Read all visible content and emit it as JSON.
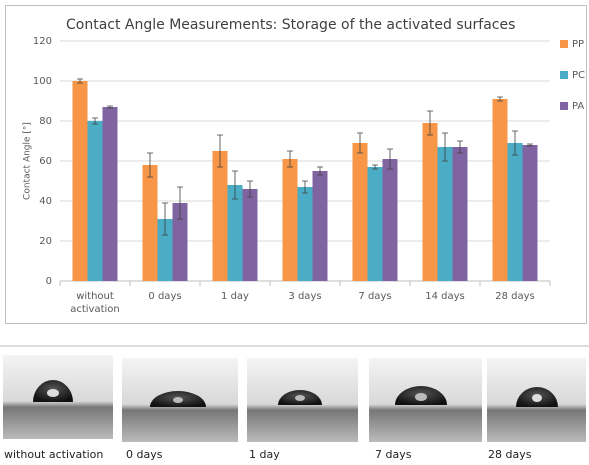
{
  "chart_data": {
    "type": "bar",
    "title": "Contact Angle Measurements: Storage of the activated surfaces",
    "y_label": "Contact Angle [°]",
    "categories": [
      "without activation",
      "0 days",
      "1 day",
      "3 days",
      "7 days",
      "14 days",
      "28 days"
    ],
    "series": [
      {
        "name": "PP",
        "color": "#f79646",
        "values": [
          100,
          58,
          65,
          61,
          69,
          79,
          91
        ],
        "errors": [
          1,
          6,
          8,
          4,
          5,
          6,
          1
        ]
      },
      {
        "name": "PC",
        "color": "#4bacc6",
        "values": [
          80,
          31,
          48,
          47,
          57,
          67,
          69
        ],
        "errors": [
          1.5,
          8,
          7,
          3,
          1,
          7,
          6
        ]
      },
      {
        "name": "PA",
        "color": "#8064a2",
        "values": [
          87,
          39,
          46,
          55,
          61,
          67,
          68
        ],
        "errors": [
          0.5,
          8,
          4,
          2,
          5,
          3,
          0.5
        ]
      }
    ],
    "ylim": [
      0,
      120
    ],
    "yticks": [
      0,
      20,
      40,
      60,
      80,
      100,
      120
    ],
    "grid": true,
    "legend": "right"
  },
  "photos": {
    "captions": [
      "without activation",
      "0 days",
      "1 day",
      "7 days",
      "28 days"
    ]
  }
}
